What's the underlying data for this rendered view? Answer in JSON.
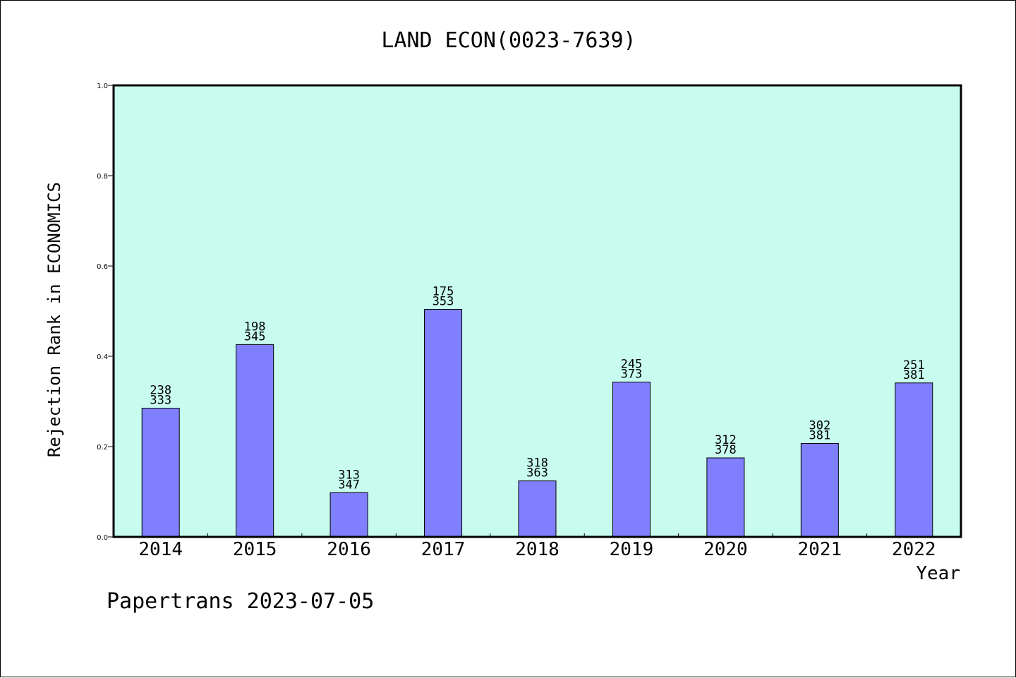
{
  "footer": "Papertrans 2023-07-05",
  "chart_data": {
    "type": "bar",
    "title": "LAND ECON(0023-7639)",
    "xlabel": "Year",
    "ylabel": "Rejection Rank in ECONOMICS",
    "ylim": [
      0,
      1.0
    ],
    "yticks": [
      "0.0",
      "0.2",
      "0.4",
      "0.6",
      "0.8",
      "1.0"
    ],
    "categories": [
      "2014",
      "2015",
      "2016",
      "2017",
      "2018",
      "2019",
      "2020",
      "2021",
      "2022"
    ],
    "values": [
      0.285,
      0.426,
      0.098,
      0.504,
      0.124,
      0.343,
      0.175,
      0.207,
      0.341
    ],
    "label_top": [
      "238",
      "198",
      "313",
      "175",
      "318",
      "245",
      "312",
      "302",
      "251"
    ],
    "label_bottom": [
      "333",
      "345",
      "347",
      "353",
      "363",
      "373",
      "378",
      "381",
      "381"
    ],
    "grid": false,
    "colors": {
      "plot_bg": "#c8fcef",
      "bar": "#8080ff",
      "bar_edge": "#000000"
    }
  }
}
